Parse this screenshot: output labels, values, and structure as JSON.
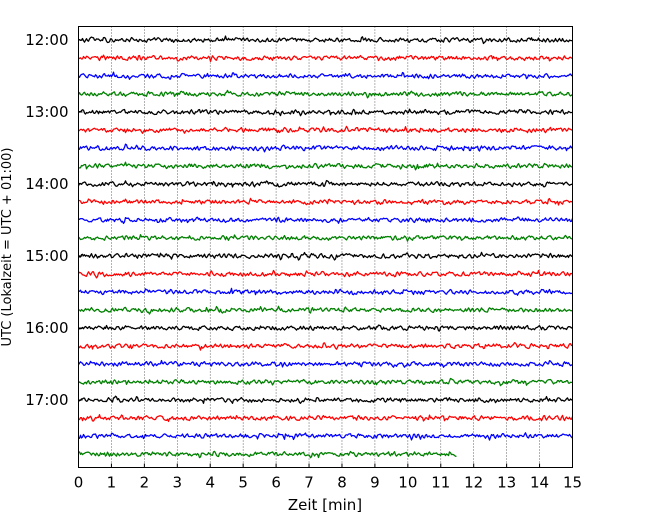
{
  "chart_data": {
    "type": "line",
    "title": "",
    "xlabel": "Zeit  [min]",
    "ylabel": "UTC (Lokalzeit = UTC + 01:00)",
    "xlim": [
      0,
      15
    ],
    "x_ticks": [
      0,
      1,
      2,
      3,
      4,
      5,
      6,
      7,
      8,
      9,
      10,
      11,
      12,
      13,
      14,
      15
    ],
    "y_tick_labels": [
      "12:00",
      "13:00",
      "14:00",
      "15:00",
      "16:00",
      "17:00"
    ],
    "grid": "vertical dotted lines at every minute",
    "row_interval_minutes": 15,
    "row_colors": [
      "#000000",
      "#ff0000",
      "#0000ff",
      "#008000"
    ],
    "rows": [
      {
        "time": "12:00",
        "color": "#000000",
        "x_end": 15
      },
      {
        "time": "12:15",
        "color": "#ff0000",
        "x_end": 15
      },
      {
        "time": "12:30",
        "color": "#0000ff",
        "x_end": 15
      },
      {
        "time": "12:45",
        "color": "#008000",
        "x_end": 15
      },
      {
        "time": "13:00",
        "color": "#000000",
        "x_end": 15
      },
      {
        "time": "13:15",
        "color": "#ff0000",
        "x_end": 15
      },
      {
        "time": "13:30",
        "color": "#0000ff",
        "x_end": 15
      },
      {
        "time": "13:45",
        "color": "#008000",
        "x_end": 15
      },
      {
        "time": "14:00",
        "color": "#000000",
        "x_end": 15
      },
      {
        "time": "14:15",
        "color": "#ff0000",
        "x_end": 15
      },
      {
        "time": "14:30",
        "color": "#0000ff",
        "x_end": 15
      },
      {
        "time": "14:45",
        "color": "#008000",
        "x_end": 15
      },
      {
        "time": "15:00",
        "color": "#000000",
        "x_end": 15
      },
      {
        "time": "15:15",
        "color": "#ff0000",
        "x_end": 15
      },
      {
        "time": "15:30",
        "color": "#0000ff",
        "x_end": 15
      },
      {
        "time": "15:45",
        "color": "#008000",
        "x_end": 15
      },
      {
        "time": "16:00",
        "color": "#000000",
        "x_end": 15
      },
      {
        "time": "16:15",
        "color": "#ff0000",
        "x_end": 15
      },
      {
        "time": "16:30",
        "color": "#0000ff",
        "x_end": 15
      },
      {
        "time": "16:45",
        "color": "#008000",
        "x_end": 15
      },
      {
        "time": "17:00",
        "color": "#000000",
        "x_end": 15
      },
      {
        "time": "17:15",
        "color": "#ff0000",
        "x_end": 15
      },
      {
        "time": "17:30",
        "color": "#0000ff",
        "x_end": 15
      },
      {
        "time": "17:45",
        "color": "#008000",
        "x_end": 11.5
      }
    ]
  }
}
